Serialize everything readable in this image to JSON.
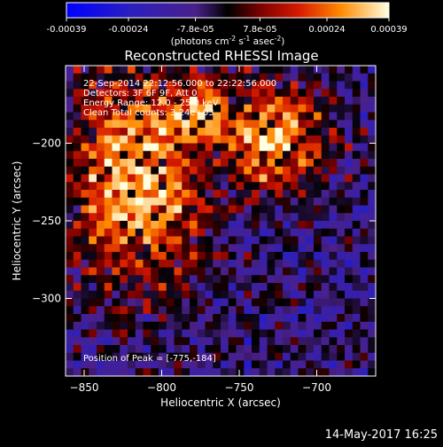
{
  "chart_data": {
    "type": "heatmap",
    "title": "Reconstructed RHESSI Image",
    "xlabel": "Heliocentric X (arcsec)",
    "ylabel": "Heliocentric Y (arcsec)",
    "xlim": [
      -862,
      -662
    ],
    "ylim": [
      -350,
      -150
    ],
    "xticks": [
      -850,
      -800,
      -750,
      -700
    ],
    "yticks": [
      -200,
      -250,
      -300
    ],
    "colorbar": {
      "min": -0.00039,
      "max": 0.00039,
      "tick_labels": [
        "-0.00039",
        "-0.00024",
        "-7.8e-05",
        "7.8e-05",
        "0.00024",
        "0.00039"
      ],
      "tick_values": [
        -0.00039,
        -0.00024,
        -7.8e-05,
        7.8e-05,
        0.00024,
        0.00039
      ],
      "unit_base": "(photons cm",
      "unit_exp1": "-2",
      "unit_mid": " s",
      "unit_exp2": "-1",
      "unit_mid2": " asec",
      "unit_exp3": "-2",
      "unit_end": ")"
    },
    "annotations": [
      "22-Sep-2014 22:12:56.000 to 22:22:56.000",
      "Detectors: 3F 6F 9F, Att 0",
      "Energy Range: 12.0 - 25.0 keV",
      "Clean    Total counts: 3.24e+03"
    ],
    "peak_label": "Position of Peak = [-775,-184]",
    "peak": [
      -775,
      -184
    ],
    "grid": false
  },
  "footer": {
    "timestamp": "14-May-2017 16:25"
  }
}
